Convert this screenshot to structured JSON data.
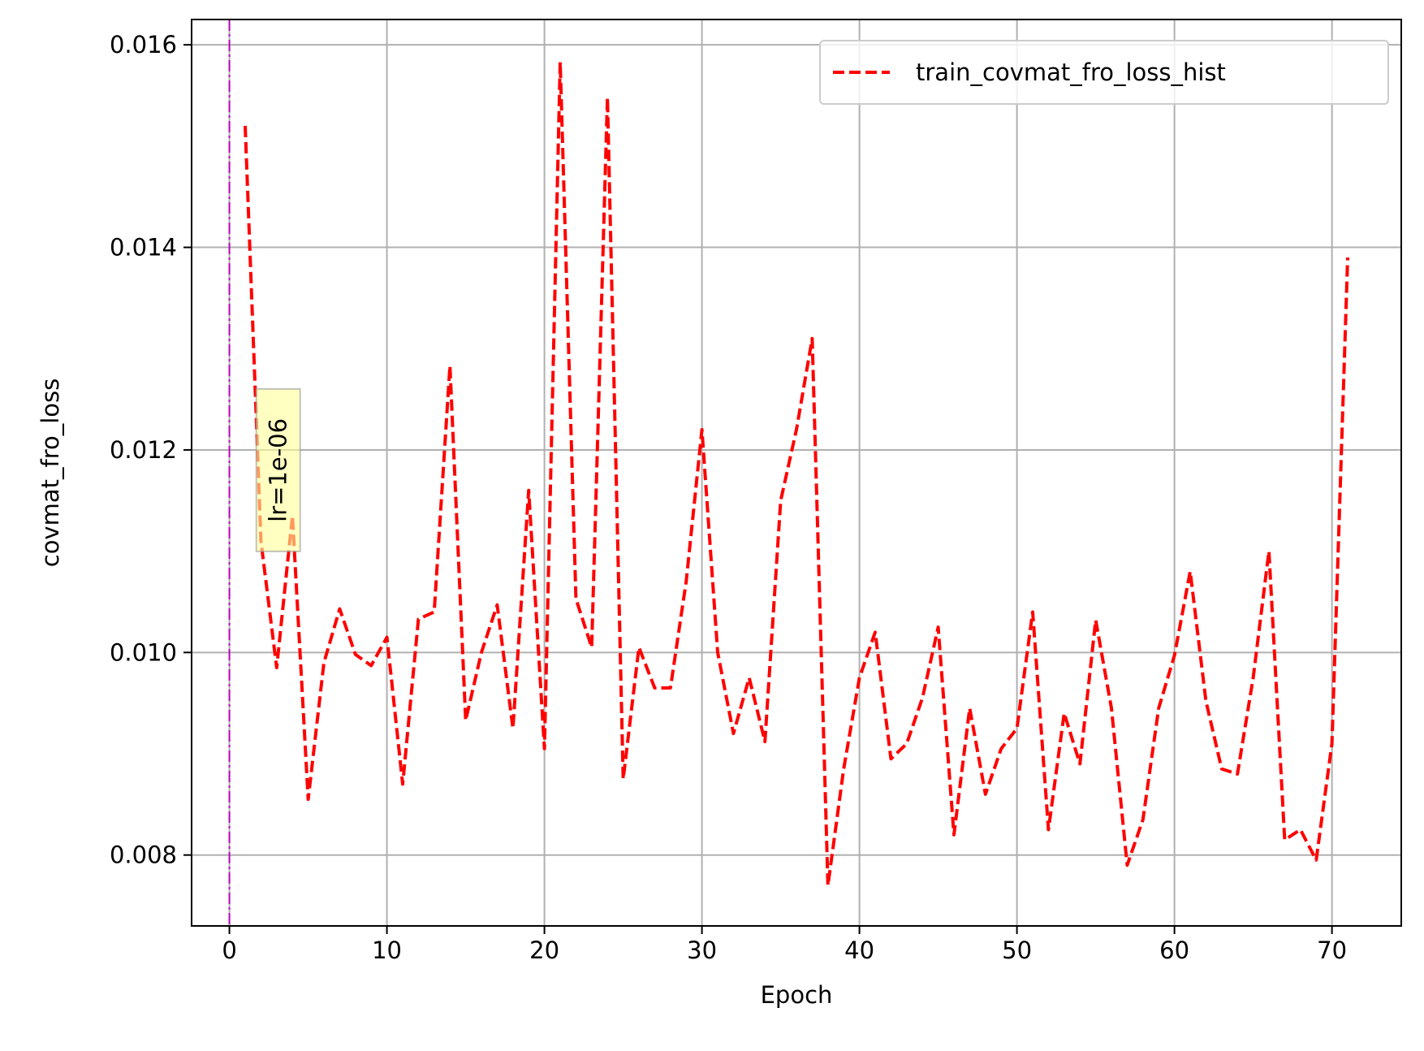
{
  "chart_data": {
    "type": "line",
    "title": "",
    "xlabel": "Epoch",
    "ylabel": "covmat_fro_loss",
    "xlim": [
      -2.4,
      74.4
    ],
    "ylim": [
      0.0073,
      0.01625
    ],
    "x_ticks": [
      0,
      10,
      20,
      30,
      40,
      50,
      60,
      70
    ],
    "y_ticks": [
      0.008,
      0.01,
      0.012,
      0.014,
      0.016
    ],
    "x_tick_labels": [
      "0",
      "10",
      "20",
      "30",
      "40",
      "50",
      "60",
      "70"
    ],
    "y_tick_labels": [
      "0.008",
      "0.010",
      "0.012",
      "0.014",
      "0.016"
    ],
    "grid": true,
    "legend_position": "top-right",
    "series": [
      {
        "name": "train_covmat_fro_loss_hist",
        "color": "#ff0000",
        "linestyle": "dashed",
        "x": [
          1,
          2,
          3,
          4,
          5,
          6,
          7,
          8,
          9,
          10,
          11,
          12,
          13,
          14,
          15,
          16,
          17,
          18,
          19,
          20,
          21,
          22,
          23,
          24,
          25,
          26,
          27,
          28,
          29,
          30,
          31,
          32,
          33,
          34,
          35,
          36,
          37,
          38,
          39,
          40,
          41,
          42,
          43,
          44,
          45,
          46,
          47,
          48,
          49,
          50,
          51,
          52,
          53,
          54,
          55,
          56,
          57,
          58,
          59,
          60,
          61,
          62,
          63,
          64,
          65,
          66,
          67,
          68,
          69,
          70,
          71
        ],
        "values": [
          0.0152,
          0.0111,
          0.00985,
          0.01135,
          0.00855,
          0.0099,
          0.01043,
          0.00998,
          0.00987,
          0.01015,
          0.0087,
          0.01033,
          0.0104,
          0.01283,
          0.00933,
          0.01,
          0.01047,
          0.00925,
          0.0116,
          0.00905,
          0.01583,
          0.01053,
          0.01005,
          0.01548,
          0.00875,
          0.01005,
          0.00965,
          0.00965,
          0.0107,
          0.0122,
          0.01,
          0.0092,
          0.00975,
          0.00912,
          0.0115,
          0.0122,
          0.0131,
          0.0077,
          0.00885,
          0.00975,
          0.0102,
          0.00895,
          0.0091,
          0.00955,
          0.01025,
          0.0082,
          0.00945,
          0.0086,
          0.00905,
          0.00925,
          0.0104,
          0.00825,
          0.0094,
          0.0089,
          0.01032,
          0.00945,
          0.0079,
          0.00835,
          0.00945,
          0.00997,
          0.0108,
          0.00952,
          0.00885,
          0.0088,
          0.00975,
          0.011,
          0.00815,
          0.00825,
          0.00795,
          0.0091,
          0.0139
        ]
      }
    ],
    "vlines": [
      {
        "x": 0,
        "color": "#bf00bf",
        "linestyle": "dashdot"
      }
    ],
    "annotations": [
      {
        "text": "lr=1e-06",
        "x": 3.1,
        "y": 0.0118,
        "rotation": -90,
        "box_color": "#ffff99"
      }
    ]
  }
}
